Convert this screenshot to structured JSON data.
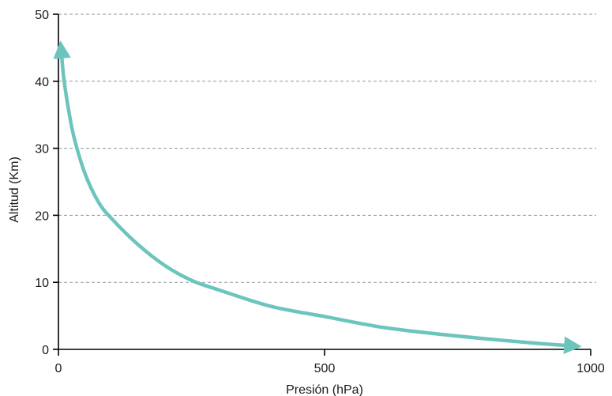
{
  "chart_data": {
    "type": "line",
    "xlabel": "Presión (hPa)",
    "ylabel": "Altitud (Km)",
    "xlim": [
      0,
      1000
    ],
    "ylim": [
      0,
      50
    ],
    "x_ticks": [
      "0",
      "500",
      "1000"
    ],
    "y_ticks": [
      "0",
      "10",
      "20",
      "30",
      "40",
      "50"
    ],
    "grid": "horizontal dashed",
    "series": [
      {
        "color": "#6cc5bd",
        "arrowheads": "both ends",
        "x": [
          5,
          10,
          20,
          30,
          50,
          75,
          100,
          150,
          200,
          250,
          300,
          400,
          500,
          600,
          700,
          800,
          900,
          970
        ],
        "y": [
          45,
          40.5,
          35.3,
          31.4,
          26.2,
          22,
          19.5,
          15.6,
          12.5,
          10.3,
          8.9,
          6.4,
          4.9,
          3.4,
          2.4,
          1.6,
          0.9,
          0.5
        ]
      }
    ]
  }
}
